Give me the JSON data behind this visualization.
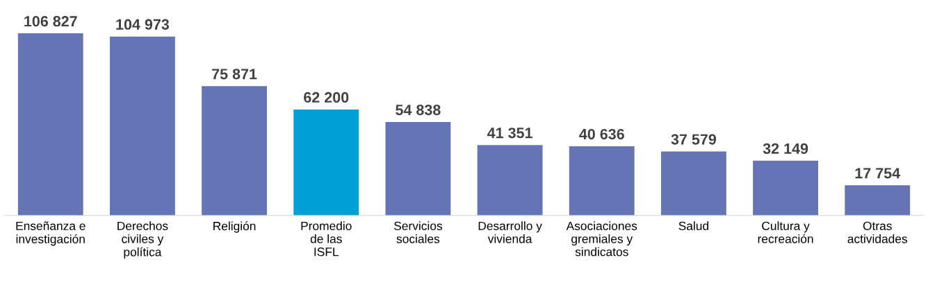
{
  "chart_data": {
    "type": "bar",
    "categories": [
      "Enseñanza e\ninvestigación",
      "Derechos\nciviles y\npolítica",
      "Religión",
      "Promedio\nde las\nISFL",
      "Servicios\nsociales",
      "Desarrollo y\nvivienda",
      "Asociaciones\ngremiales y\nsindicatos",
      "Salud",
      "Cultura y\nrecreación",
      "Otras\nactividades"
    ],
    "values": [
      106827,
      104973,
      75871,
      62200,
      54838,
      41351,
      40636,
      37579,
      32149,
      17754
    ],
    "value_labels": [
      "106 827",
      "104 973",
      "75 871",
      "62 200",
      "54 838",
      "41 351",
      "40 636",
      "37 579",
      "32 149",
      "17 754"
    ],
    "colors": [
      "#6574b4",
      "#6574b4",
      "#6574b4",
      "#009fd6",
      "#6574b4",
      "#6574b4",
      "#6574b4",
      "#6574b4",
      "#6574b4",
      "#6574b4"
    ],
    "grid": false,
    "legend": false
  }
}
